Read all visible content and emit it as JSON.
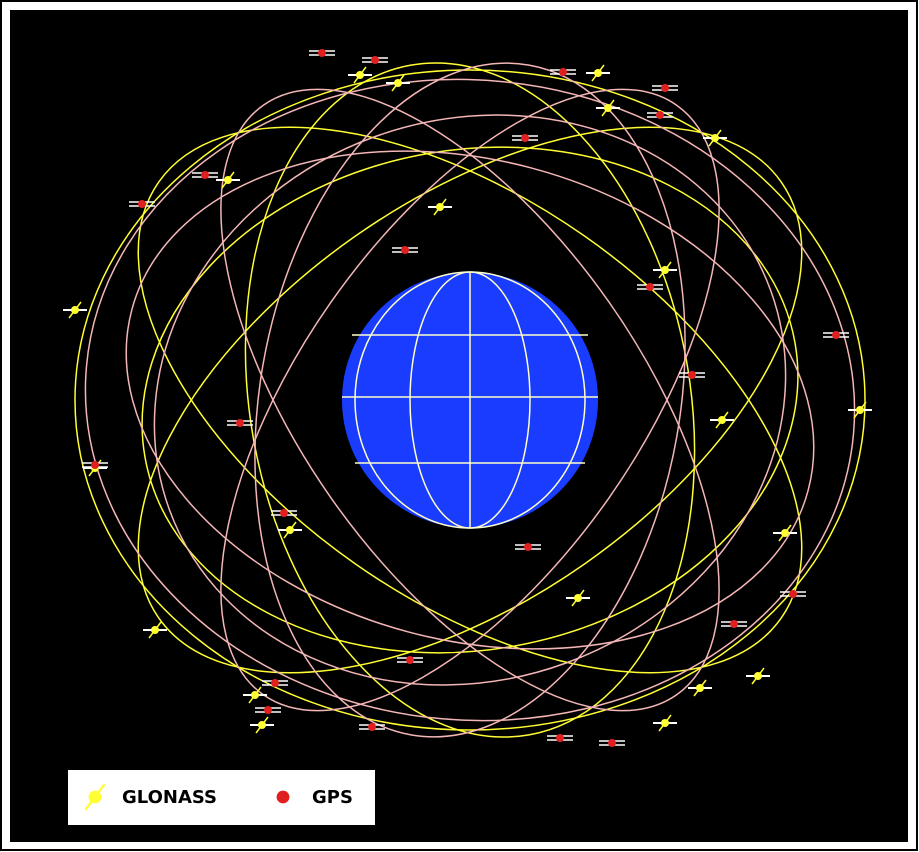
{
  "legend": {
    "items": [
      {
        "label": "GLONASS"
      },
      {
        "label": "GPS"
      }
    ]
  }
}
